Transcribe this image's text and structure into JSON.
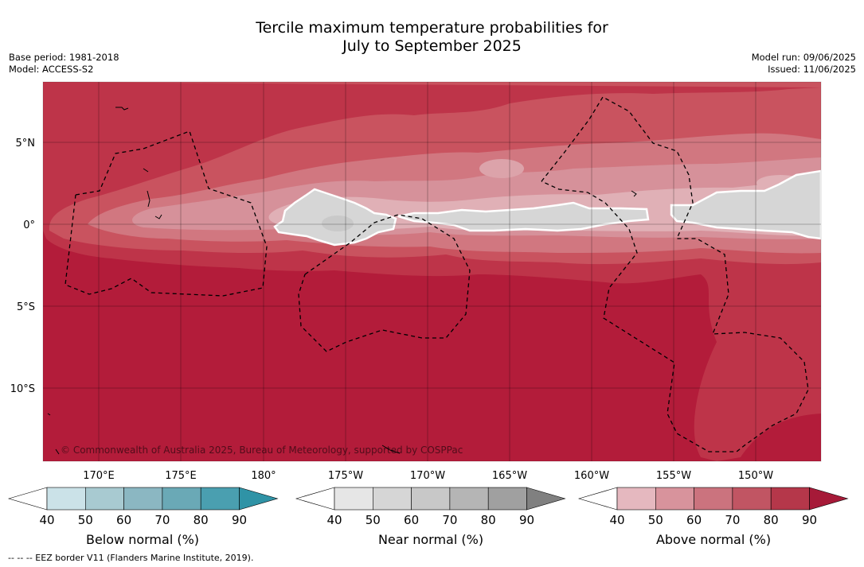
{
  "title": {
    "line1": "Tercile maximum temperature probabilities for",
    "line2": "July to September 2025"
  },
  "meta_left": {
    "base_period": "Base period: 1981-2018",
    "model": "Model: ACCESS-S2"
  },
  "meta_right": {
    "model_run": "Model run: 09/06/2025",
    "issued": "Issued: 11/06/2025"
  },
  "map": {
    "copyright": "© Commonwealth of Australia 2025, Bureau of Meteorology, supported by COSPPac",
    "lat_labels": [
      "5°N",
      "0°",
      "5°S",
      "10°S"
    ],
    "lon_labels": [
      "170°E",
      "175°E",
      "180°",
      "175°W",
      "170°W",
      "165°W",
      "160°W",
      "155°W",
      "150°W"
    ]
  },
  "colorbars": {
    "below": {
      "title": "Below normal (%)",
      "ticks": [
        "40",
        "50",
        "60",
        "70",
        "80",
        "90"
      ],
      "colors": [
        "#ffffff",
        "#cbe2e8",
        "#a8cad1",
        "#8bb7c2",
        "#6aa9b6",
        "#4a9fb0",
        "#2f93a6"
      ]
    },
    "near": {
      "title": "Near normal (%)",
      "ticks": [
        "40",
        "50",
        "60",
        "70",
        "80",
        "90"
      ],
      "colors": [
        "#ffffff",
        "#e6e6e6",
        "#d6d6d6",
        "#c8c8c8",
        "#b5b5b5",
        "#a0a0a0",
        "#808080"
      ]
    },
    "above": {
      "title": "Above normal (%)",
      "ticks": [
        "40",
        "50",
        "60",
        "70",
        "80",
        "90"
      ],
      "colors": [
        "#ffffff",
        "#e5b8bf",
        "#d8939c",
        "#cb737e",
        "#c15563",
        "#b5374a",
        "#a61a38"
      ]
    }
  },
  "footer": "--  --  -- EEZ border V11 (Flanders Marine Institute, 2019)."
}
